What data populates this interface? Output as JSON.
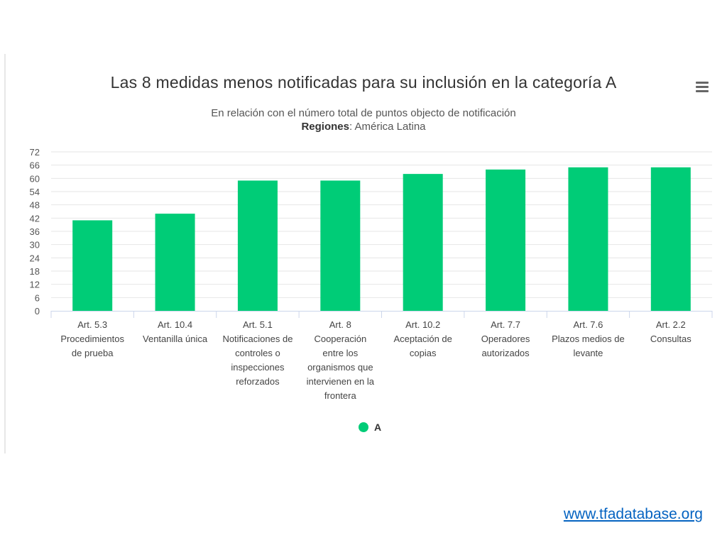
{
  "chart_data": {
    "type": "bar",
    "title": "Las 8 medidas menos notificadas para su inclusión en la categoría A",
    "subtitle_line1": "En relación con el número total de puntos objecto de notificación",
    "subtitle_bold": "Regiones",
    "subtitle_rest": ": América Latina",
    "categories": [
      [
        "Art. 5.3",
        "Procedimientos",
        "de prueba"
      ],
      [
        "Art. 10.4",
        "Ventanilla única"
      ],
      [
        "Art. 5.1",
        "Notificaciones de",
        "controles o",
        "inspecciones",
        "reforzados"
      ],
      [
        "Art. 8",
        "Cooperación",
        "entre los",
        "organismos que",
        "intervienen en la",
        "frontera"
      ],
      [
        "Art. 10.2",
        "Aceptación de",
        "copias"
      ],
      [
        "Art. 7.7",
        "Operadores",
        "autorizados"
      ],
      [
        "Art. 7.6",
        "Plazos medios de",
        "levante"
      ],
      [
        "Art. 2.2",
        "Consultas"
      ]
    ],
    "series": [
      {
        "name": "A",
        "color": "#00cc77",
        "values": [
          41,
          44,
          59,
          59,
          62,
          64,
          65,
          65
        ]
      }
    ],
    "yticks": [
      0,
      6,
      12,
      18,
      24,
      30,
      36,
      42,
      48,
      54,
      60,
      66,
      72
    ],
    "ylim": [
      0,
      72
    ],
    "grid": true,
    "legend_position": "bottom-center"
  },
  "menu": {
    "icon": "hamburger-menu-icon"
  },
  "footer": {
    "link_text": "www.tfadatabase.org"
  }
}
